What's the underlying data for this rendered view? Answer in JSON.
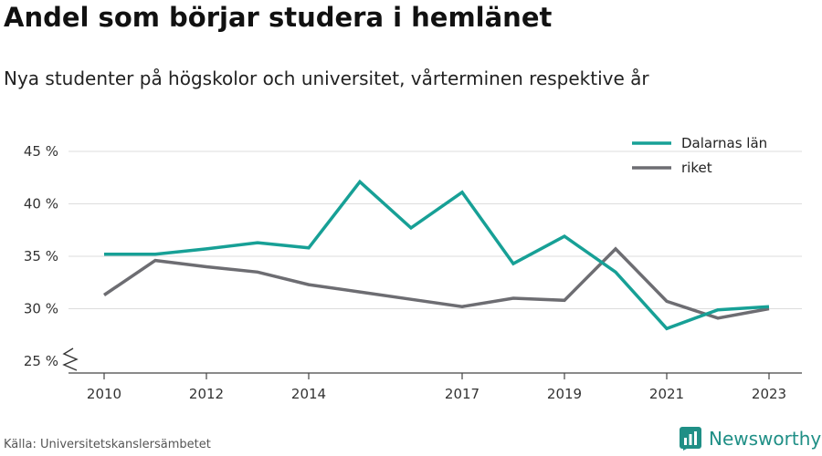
{
  "title": "Andel som börjar studera i hemlänet",
  "subtitle": "Nya studenter på högskolor och universitet, vårterminen respektive år",
  "source": "Källa: Universitetskanslersämbetet",
  "brand": "Newsworthy",
  "colors": {
    "dalarna": "#17a096",
    "riket": "#6d6d72",
    "brand": "#1f8f86"
  },
  "chart_data": {
    "type": "line",
    "x_ticks": [
      2010,
      2012,
      2014,
      2017,
      2019,
      2021,
      2023
    ],
    "y_ticks": [
      "25 %",
      "30 %",
      "35 %",
      "40 %",
      "45 %"
    ],
    "y_tick_values": [
      25,
      30,
      35,
      40,
      45
    ],
    "ylim": [
      24,
      46
    ],
    "xlim": [
      2010,
      2023
    ],
    "y_axis_break": true,
    "grid": true,
    "legend_position": "top-right",
    "series": [
      {
        "name": "Dalarnas län",
        "color": "#17a096",
        "x": [
          2010,
          2011,
          2012,
          2013,
          2014,
          2015,
          2016,
          2017,
          2018,
          2019,
          2020,
          2021,
          2022,
          2023
        ],
        "values": [
          35.2,
          35.2,
          35.7,
          36.3,
          35.8,
          42.1,
          37.7,
          41.1,
          34.3,
          36.9,
          33.5,
          28.1,
          29.9,
          30.2
        ]
      },
      {
        "name": "riket",
        "color": "#6d6d72",
        "x": [
          2010,
          2011,
          2012,
          2013,
          2014,
          2015,
          2016,
          2017,
          2018,
          2019,
          2020,
          2021,
          2022,
          2023
        ],
        "values": [
          31.3,
          34.6,
          34.0,
          33.5,
          32.3,
          31.6,
          30.9,
          30.2,
          31.0,
          30.8,
          35.7,
          30.7,
          29.1,
          30.0
        ]
      }
    ]
  }
}
